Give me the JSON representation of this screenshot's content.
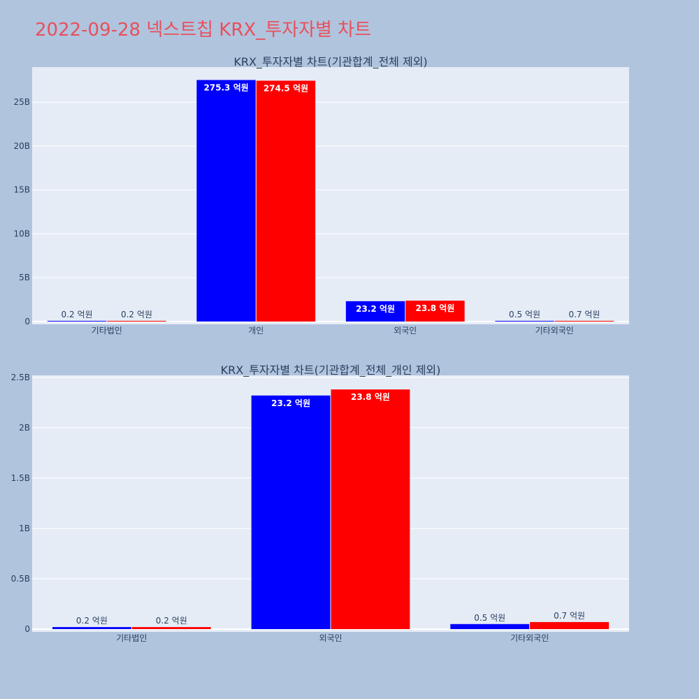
{
  "page": {
    "title": "2022-09-28 넥스트칩 KRX_투자자별 차트"
  },
  "colors": {
    "background": "#b0c4de",
    "plot_bg": "#e5ecf6",
    "grid": "#ffffff",
    "series_a": "#0000ff",
    "series_b": "#ff0000",
    "title": "#e8505b",
    "text": "#2a3f5f"
  },
  "chart_data": [
    {
      "type": "bar",
      "title": "KRX_투자자별 차트(기관합계_전체 제외)",
      "categories": [
        "기타법인",
        "개인",
        "외국인",
        "기타외국인"
      ],
      "series": [
        {
          "values": [
            20000000,
            27530000000,
            2320000000,
            50000000
          ],
          "labels": [
            "0.2 억원",
            "275.3 억원",
            "23.2 억원",
            "0.5 억원"
          ]
        },
        {
          "values": [
            20000000,
            27450000000,
            2380000000,
            70000000
          ],
          "labels": [
            "0.2 억원",
            "274.5 억원",
            "23.8 억원",
            "0.7 억원"
          ]
        }
      ],
      "ylim": [
        0,
        29000000000
      ],
      "yticks": [
        0,
        5000000000,
        10000000000,
        15000000000,
        20000000000,
        25000000000
      ],
      "ytick_labels": [
        "0",
        "5B",
        "10B",
        "15B",
        "20B",
        "25B"
      ],
      "grid": true
    },
    {
      "type": "bar",
      "title": "KRX_투자자별 차트(기관합계_전체_개인 제외)",
      "categories": [
        "기타법인",
        "외국인",
        "기타외국인"
      ],
      "series": [
        {
          "values": [
            20000000,
            2320000000,
            50000000
          ],
          "labels": [
            "0.2 억원",
            "23.2 억원",
            "0.5 억원"
          ]
        },
        {
          "values": [
            20000000,
            2380000000,
            70000000
          ],
          "labels": [
            "0.2 억원",
            "23.8 억원",
            "0.7 억원"
          ]
        }
      ],
      "ylim": [
        0,
        2520000000
      ],
      "yticks": [
        0,
        500000000,
        1000000000,
        1500000000,
        2000000000,
        2500000000
      ],
      "ytick_labels": [
        "0",
        "0.5B",
        "1B",
        "1.5B",
        "2B",
        "2.5B"
      ],
      "grid": true
    }
  ]
}
